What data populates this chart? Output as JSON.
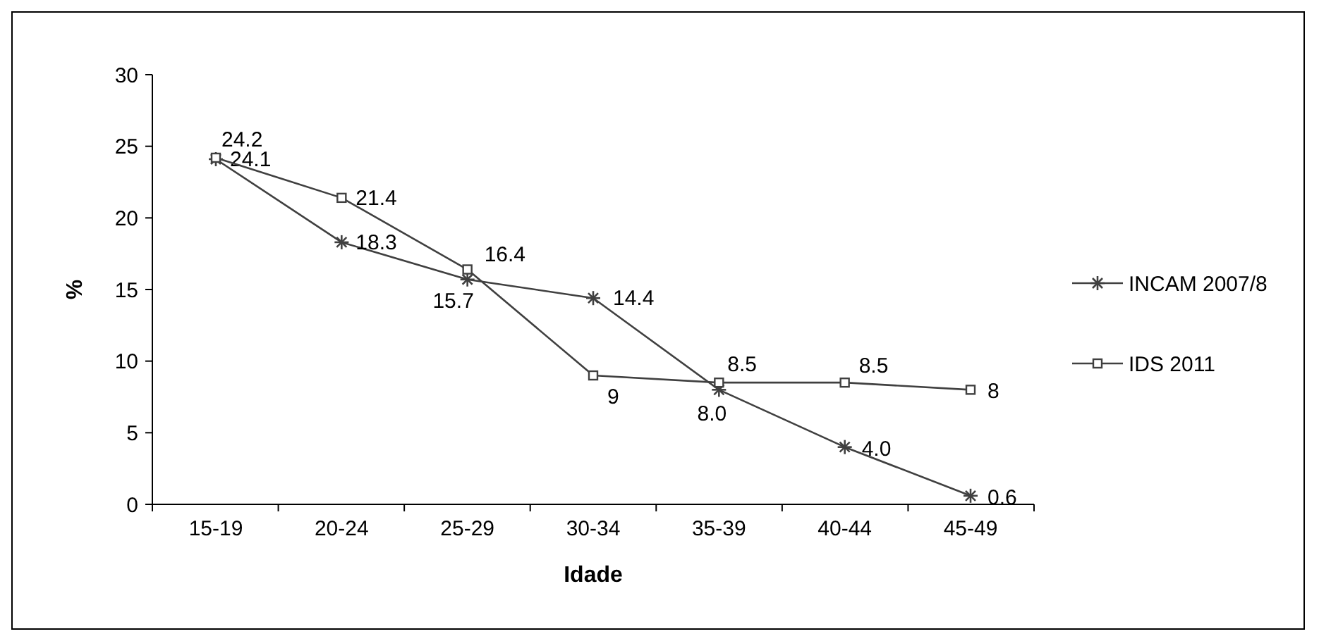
{
  "chart_data": {
    "type": "line",
    "xlabel": "Idade",
    "ylabel": "%",
    "categories": [
      "15-19",
      "20-24",
      "25-29",
      "30-34",
      "35-39",
      "40-44",
      "45-49"
    ],
    "ylim": [
      0,
      30
    ],
    "yticks": [
      0,
      5,
      10,
      15,
      20,
      25,
      30
    ],
    "grid": false,
    "legend": "right",
    "series": [
      {
        "name": "INCAM 2007/8",
        "color": "#404040",
        "marker": "cross",
        "values": [
          24.1,
          18.3,
          15.7,
          14.4,
          8.0,
          4.0,
          0.6
        ],
        "value_labels": [
          "24.1",
          "18.3",
          "15.7",
          "14.4",
          "8.0",
          "4.0",
          "0.6"
        ]
      },
      {
        "name": "IDS 2011",
        "color": "#404040",
        "marker": "square",
        "values": [
          24.2,
          21.4,
          16.4,
          9,
          8.5,
          8.5,
          8
        ],
        "value_labels": [
          "24.2",
          "21.4",
          "16.4",
          "9",
          "8.5",
          "8.5",
          "8"
        ]
      }
    ]
  }
}
